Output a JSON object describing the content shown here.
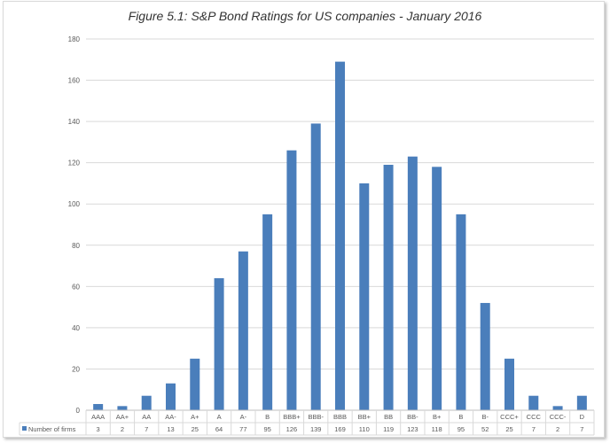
{
  "chart_data": {
    "type": "bar",
    "title": "Figure 5.1: S&P Bond Ratings for US companies - January 2016",
    "categories": [
      "AAA",
      "AA+",
      "AA",
      "AA-",
      "A+",
      "A",
      "A-",
      "B",
      "BBB+",
      "BBB-",
      "BBB",
      "BB+",
      "BB",
      "BB-",
      "B+",
      "B",
      "B-",
      "CCC+",
      "CCC",
      "CCC-",
      "D"
    ],
    "series": [
      {
        "name": "Number of firms",
        "values": [
          3,
          2,
          7,
          13,
          25,
          64,
          77,
          95,
          126,
          139,
          169,
          110,
          119,
          123,
          118,
          95,
          52,
          25,
          7,
          2,
          7
        ],
        "color": "#4a7ebb"
      }
    ],
    "ylim": [
      0,
      180
    ],
    "yticks": [
      0,
      20,
      40,
      60,
      80,
      100,
      120,
      140,
      160,
      180
    ],
    "grid": true,
    "legend": "data-table"
  }
}
